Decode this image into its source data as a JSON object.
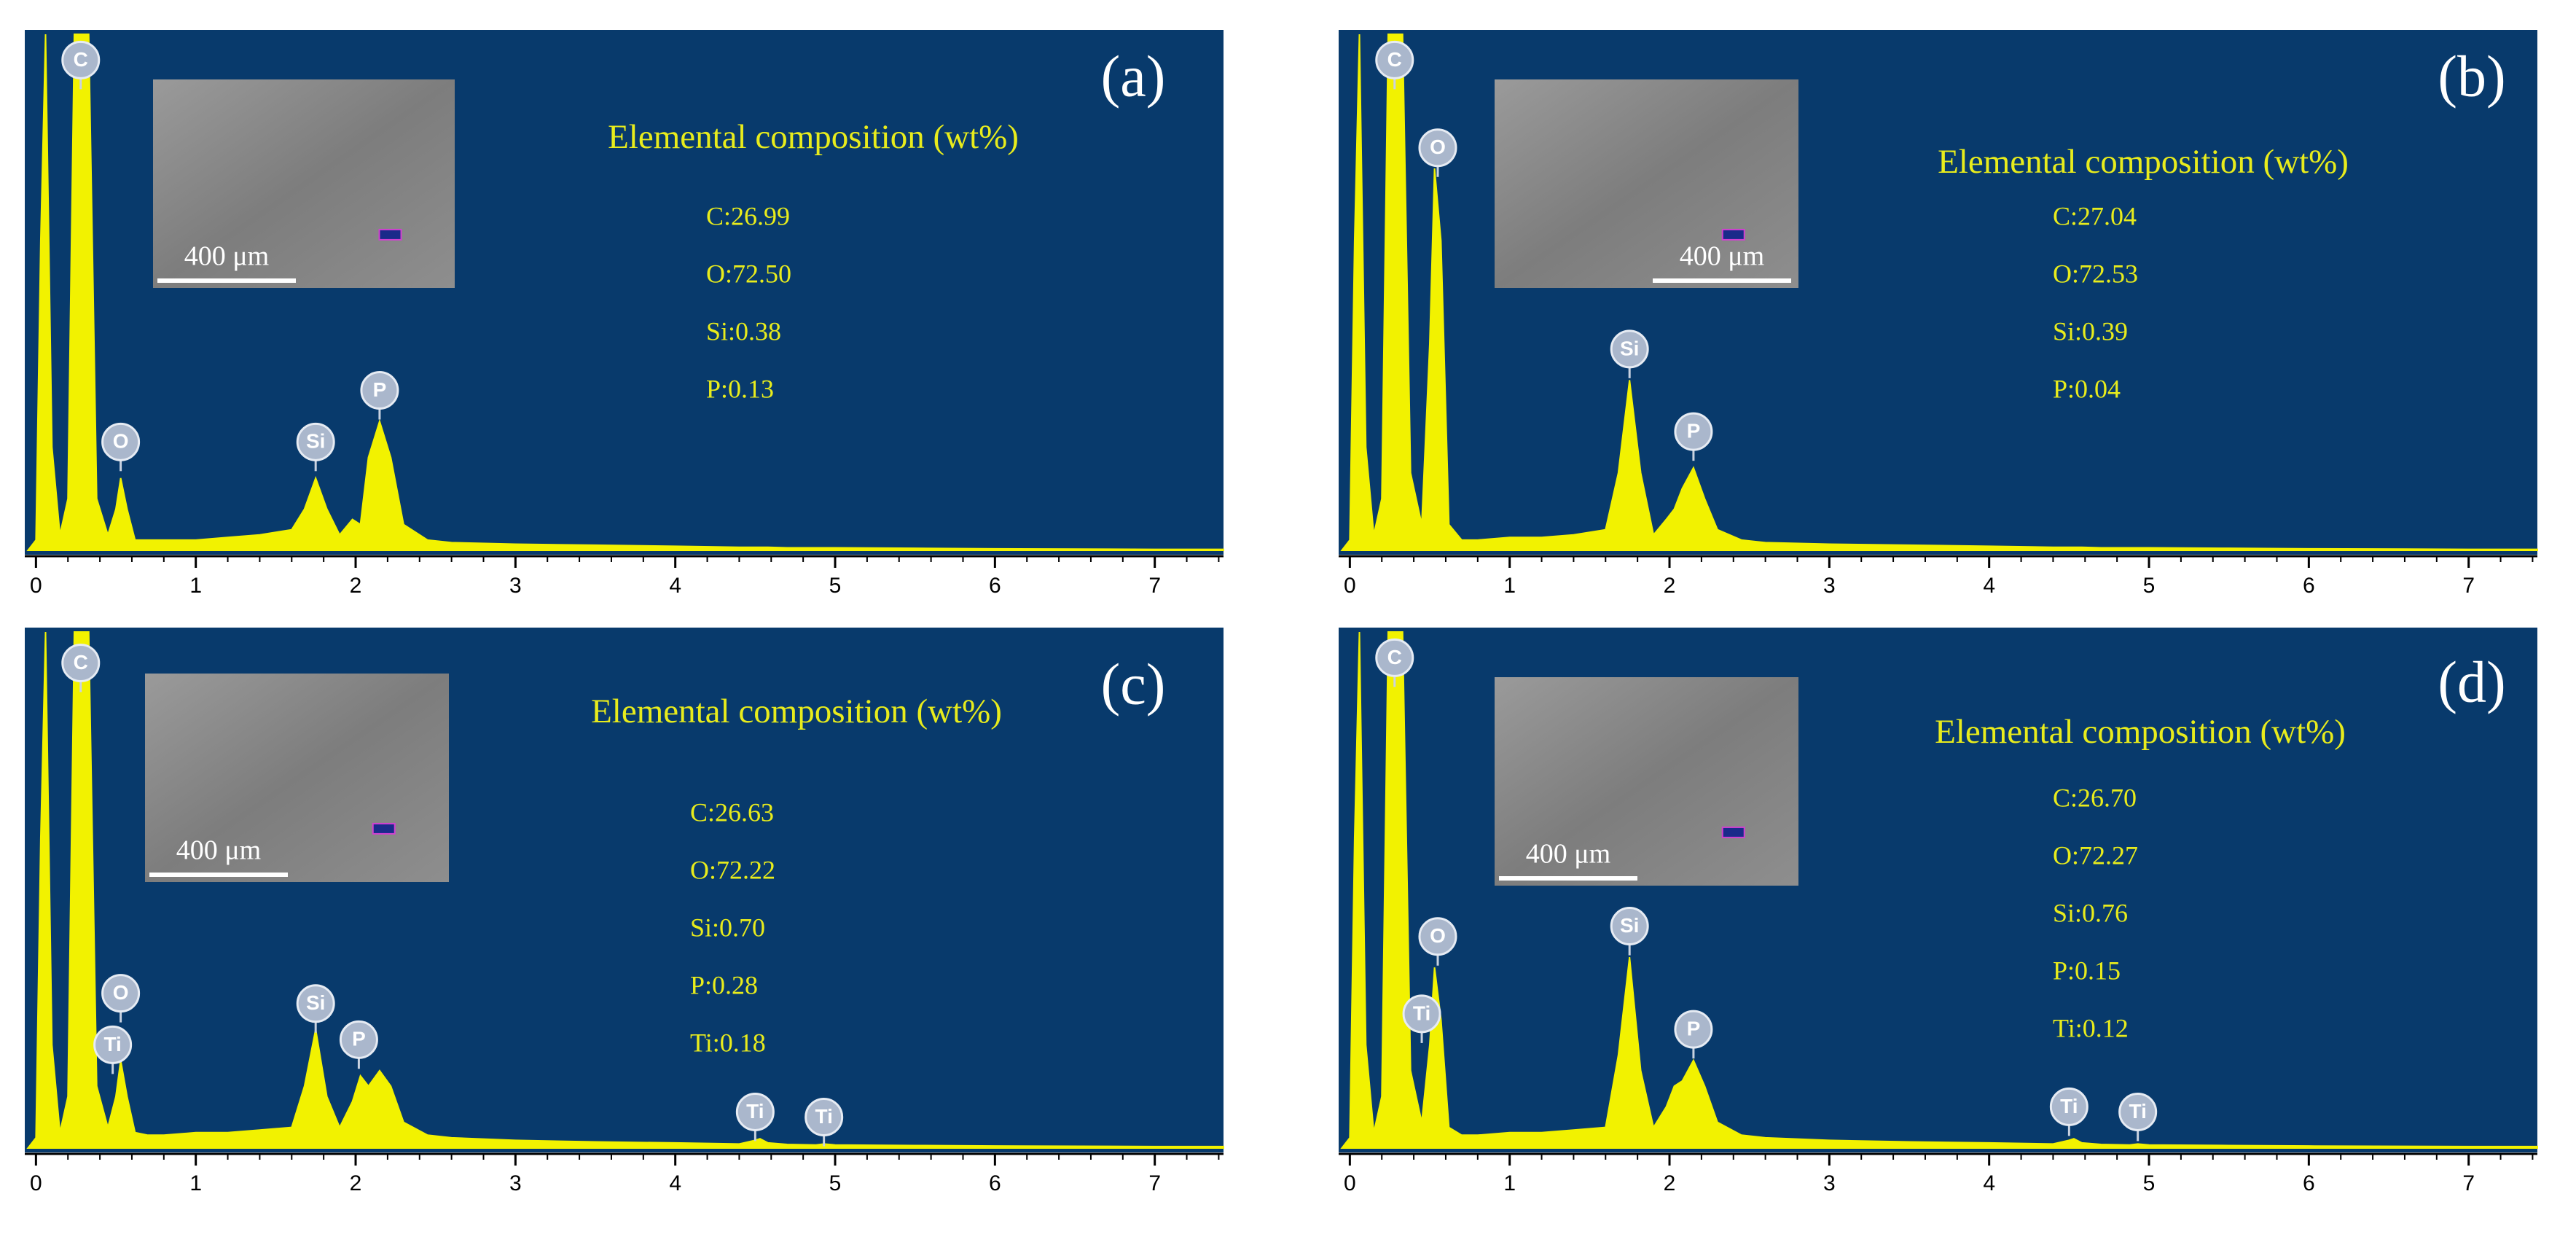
{
  "chart_data": [
    {
      "type": "area",
      "panel_label": "(a)",
      "title": "Elemental composition (wt%)",
      "composition": [
        "C:26.99",
        "O:72.50",
        "Si:0.38",
        "P:0.13"
      ],
      "scale_bar": "400 μm",
      "color": "#f2f200",
      "background": "#083a6c",
      "xlim": [
        -0.07,
        7.43
      ],
      "xticks": [
        0,
        1,
        2,
        3,
        4,
        5,
        6,
        7
      ],
      "ylim": [
        0,
        100
      ],
      "x": [
        -0.05,
        0,
        0.03,
        0.06,
        0.1,
        0.15,
        0.2,
        0.24,
        0.28,
        0.33,
        0.38,
        0.45,
        0.5,
        0.53,
        0.57,
        0.62,
        0.7,
        0.8,
        1.0,
        1.2,
        1.4,
        1.6,
        1.68,
        1.75,
        1.82,
        1.9,
        1.98,
        2.03,
        2.08,
        2.15,
        2.22,
        2.3,
        2.45,
        2.6,
        3.0,
        3.5,
        4.0,
        4.4,
        4.5,
        4.53,
        4.58,
        4.7,
        4.88,
        4.93,
        5.0,
        5.5,
        6.0,
        7.0,
        7.43
      ],
      "values": [
        0,
        2,
        60,
        100,
        20,
        3,
        10,
        100,
        100,
        100,
        10,
        3,
        8,
        14,
        8,
        2,
        2,
        2,
        2,
        2.5,
        3,
        4,
        8,
        14,
        8,
        3,
        6,
        5,
        18,
        25,
        18,
        5,
        2,
        1.5,
        1.2,
        1,
        0.8,
        0.6,
        0.6,
        0.6,
        0.6,
        0.5,
        0.5,
        0.5,
        0.5,
        0.4,
        0.3,
        0.2,
        0.2
      ],
      "annotations": [
        {
          "label": "C",
          "x": 0.28,
          "y": 95
        },
        {
          "label": "O",
          "x": 0.53,
          "y": 21
        },
        {
          "label": "Si",
          "x": 1.75,
          "y": 21
        },
        {
          "label": "P",
          "x": 2.15,
          "y": 31
        }
      ]
    },
    {
      "type": "area",
      "panel_label": "(b)",
      "title": "Elemental composition (wt%)",
      "composition": [
        "C:27.04",
        "O:72.53",
        "Si:0.39",
        "P:0.04"
      ],
      "scale_bar": "400 μm",
      "color": "#f2f200",
      "background": "#083a6c",
      "xlim": [
        -0.07,
        7.43
      ],
      "xticks": [
        0,
        1,
        2,
        3,
        4,
        5,
        6,
        7
      ],
      "ylim": [
        0,
        100
      ],
      "x": [
        -0.05,
        0,
        0.03,
        0.06,
        0.1,
        0.15,
        0.2,
        0.24,
        0.28,
        0.33,
        0.38,
        0.45,
        0.5,
        0.53,
        0.57,
        0.62,
        0.7,
        0.8,
        1.0,
        1.2,
        1.4,
        1.6,
        1.68,
        1.75,
        1.82,
        1.9,
        1.98,
        2.03,
        2.08,
        2.15,
        2.22,
        2.3,
        2.45,
        2.6,
        3.0,
        3.5,
        4.0,
        4.4,
        4.5,
        4.53,
        4.58,
        4.7,
        4.88,
        4.93,
        5.0,
        5.5,
        6.0,
        7.0,
        7.43
      ],
      "values": [
        0,
        2,
        60,
        100,
        20,
        3,
        10,
        100,
        100,
        100,
        15,
        5,
        40,
        74,
        60,
        5,
        2,
        2,
        2.5,
        2.5,
        3,
        4,
        15,
        33,
        15,
        3,
        6,
        8,
        12,
        16,
        10,
        4,
        2,
        1.5,
        1.2,
        1,
        0.8,
        0.6,
        0.6,
        0.6,
        0.6,
        0.5,
        0.5,
        0.5,
        0.5,
        0.4,
        0.3,
        0.2,
        0.2
      ],
      "annotations": [
        {
          "label": "C",
          "x": 0.28,
          "y": 95
        },
        {
          "label": "O",
          "x": 0.55,
          "y": 78
        },
        {
          "label": "Si",
          "x": 1.75,
          "y": 39
        },
        {
          "label": "P",
          "x": 2.15,
          "y": 23
        }
      ]
    },
    {
      "type": "area",
      "panel_label": "(c)",
      "title": "Elemental composition (wt%)",
      "composition": [
        "C:26.63",
        "O:72.22",
        "Si:0.70",
        "P:0.28",
        "Ti:0.18"
      ],
      "scale_bar": "400 μm",
      "color": "#f2f200",
      "background": "#083a6c",
      "xlim": [
        -0.07,
        7.43
      ],
      "xticks": [
        0,
        1,
        2,
        3,
        4,
        5,
        6,
        7
      ],
      "ylim": [
        0,
        100
      ],
      "x": [
        -0.05,
        0,
        0.03,
        0.06,
        0.1,
        0.15,
        0.2,
        0.24,
        0.28,
        0.33,
        0.38,
        0.45,
        0.5,
        0.53,
        0.57,
        0.62,
        0.7,
        0.8,
        1.0,
        1.2,
        1.4,
        1.6,
        1.68,
        1.75,
        1.82,
        1.9,
        1.98,
        2.03,
        2.08,
        2.15,
        2.22,
        2.3,
        2.45,
        2.6,
        3.0,
        3.5,
        4.0,
        4.4,
        4.5,
        4.53,
        4.58,
        4.7,
        4.88,
        4.93,
        5.0,
        5.5,
        6.0,
        7.0,
        7.43
      ],
      "values": [
        0,
        2,
        60,
        100,
        20,
        3,
        10,
        100,
        100,
        100,
        12,
        4,
        10,
        17,
        10,
        3,
        2.5,
        2.5,
        3,
        3,
        3.5,
        4,
        12,
        23,
        10,
        4,
        9,
        14,
        12,
        15,
        12,
        5,
        2.5,
        2,
        1.5,
        1.2,
        1,
        0.8,
        1.5,
        1.8,
        1,
        0.7,
        0.6,
        0.8,
        0.6,
        0.5,
        0.4,
        0.3,
        0.3
      ],
      "annotations": [
        {
          "label": "C",
          "x": 0.28,
          "y": 94
        },
        {
          "label": "O",
          "x": 0.53,
          "y": 30
        },
        {
          "label": "Ti",
          "x": 0.48,
          "y": 20
        },
        {
          "label": "Si",
          "x": 1.75,
          "y": 28
        },
        {
          "label": "P",
          "x": 2.02,
          "y": 21
        },
        {
          "label": "Ti",
          "x": 4.5,
          "y": 7
        },
        {
          "label": "Ti",
          "x": 4.93,
          "y": 6
        }
      ]
    },
    {
      "type": "area",
      "panel_label": "(d)",
      "title": "Elemental composition (wt%)",
      "composition": [
        "C:26.70",
        "O:72.27",
        "Si:0.76",
        "P:0.15",
        "Ti:0.12"
      ],
      "scale_bar": "400 μm",
      "color": "#f2f200",
      "background": "#083a6c",
      "xlim": [
        -0.07,
        7.43
      ],
      "xticks": [
        0,
        1,
        2,
        3,
        4,
        5,
        6,
        7
      ],
      "ylim": [
        0,
        100
      ],
      "x": [
        -0.05,
        0,
        0.03,
        0.06,
        0.1,
        0.15,
        0.2,
        0.24,
        0.28,
        0.33,
        0.38,
        0.45,
        0.5,
        0.53,
        0.57,
        0.62,
        0.7,
        0.8,
        1.0,
        1.2,
        1.4,
        1.6,
        1.68,
        1.75,
        1.82,
        1.9,
        1.98,
        2.03,
        2.08,
        2.15,
        2.22,
        2.3,
        2.45,
        2.6,
        3.0,
        3.5,
        4.0,
        4.4,
        4.5,
        4.53,
        4.58,
        4.7,
        4.88,
        4.93,
        5.0,
        5.5,
        6.0,
        7.0,
        7.43
      ],
      "values": [
        0,
        2,
        60,
        100,
        20,
        3,
        10,
        100,
        100,
        100,
        15,
        5,
        20,
        35,
        25,
        4,
        2.5,
        2.5,
        3,
        3,
        3.5,
        4,
        18,
        37,
        15,
        4,
        8,
        12,
        13,
        17,
        12,
        5,
        2.5,
        2,
        1.5,
        1.2,
        1,
        0.8,
        1.5,
        1.8,
        1,
        0.7,
        0.6,
        0.8,
        0.6,
        0.5,
        0.4,
        0.3,
        0.3
      ],
      "annotations": [
        {
          "label": "C",
          "x": 0.28,
          "y": 95
        },
        {
          "label": "O",
          "x": 0.55,
          "y": 41
        },
        {
          "label": "Ti",
          "x": 0.45,
          "y": 26
        },
        {
          "label": "Si",
          "x": 1.75,
          "y": 43
        },
        {
          "label": "P",
          "x": 2.15,
          "y": 23
        },
        {
          "label": "Ti",
          "x": 4.5,
          "y": 8
        },
        {
          "label": "Ti",
          "x": 4.93,
          "y": 7
        }
      ]
    }
  ]
}
